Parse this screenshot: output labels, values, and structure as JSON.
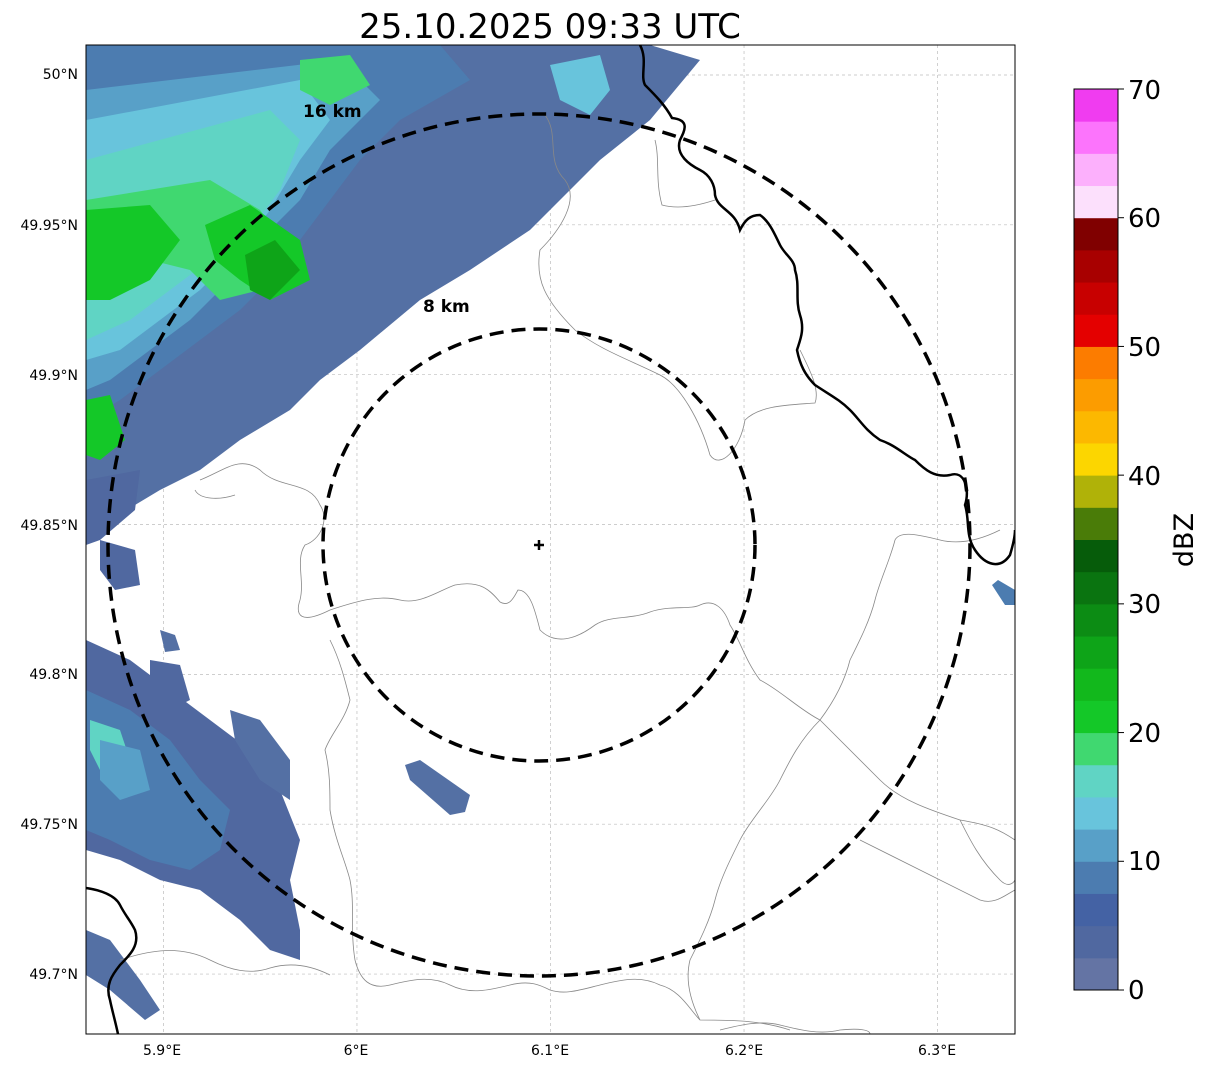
{
  "title": "25.10.2025 09:33 UTC",
  "map": {
    "lon_range": [
      5.86,
      6.34
    ],
    "lat_range": [
      49.68,
      50.01
    ],
    "x_ticks": [
      "5.9°E",
      "6°E",
      "6.1°E",
      "6.2°E",
      "6.3°E"
    ],
    "x_tick_values": [
      5.9,
      6.0,
      6.1,
      6.2,
      6.3
    ],
    "y_ticks": [
      "50°N",
      "49.95°N",
      "49.9°N",
      "49.85°N",
      "49.8°N",
      "49.75°N",
      "49.7°N"
    ],
    "y_tick_values": [
      50.0,
      49.95,
      49.9,
      49.85,
      49.8,
      49.75,
      49.7
    ],
    "radar_site": {
      "lon": 6.095,
      "lat": 49.843
    },
    "range_rings": [
      {
        "label": "8 km",
        "radius_km": 8
      },
      {
        "label": "16 km",
        "radius_km": 16
      }
    ]
  },
  "colorbar": {
    "label": "dBZ",
    "ticks": [
      "0",
      "10",
      "20",
      "30",
      "40",
      "50",
      "60",
      "70"
    ],
    "tick_values": [
      0,
      10,
      20,
      30,
      40,
      50,
      60,
      70
    ],
    "step": 2.5,
    "colors": [
      "#6474a4",
      "#5068a0",
      "#4462a4",
      "#4c7cb0",
      "#58a0c8",
      "#68c4dc",
      "#60d4c4",
      "#40d870",
      "#14c828",
      "#12b81c",
      "#0ea418",
      "#0c8c14",
      "#0a7410",
      "#065c0a",
      "#4a7c08",
      "#b0b208",
      "#fcd600",
      "#fcb800",
      "#fc9c00",
      "#fc7c00",
      "#e40000",
      "#c80000",
      "#a80000",
      "#800000",
      "#fce0fc",
      "#fcb0fc",
      "#fc74fc",
      "#f03cf0"
    ]
  }
}
